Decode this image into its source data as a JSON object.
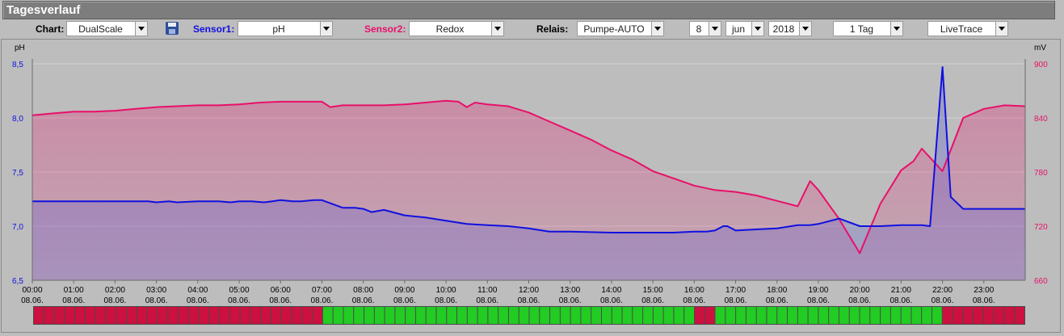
{
  "window": {
    "title": "Tagesverlauf"
  },
  "toolbar": {
    "chart_label": "Chart:",
    "chart_value": "DualScale",
    "sensor1_label": "Sensor1:",
    "sensor1_value": "pH",
    "sensor2_label": "Sensor2:",
    "sensor2_value": "Redox",
    "relais_label": "Relais:",
    "relais_value": "Pumpe-AUTO",
    "day_value": "8",
    "month_value": "jun",
    "year_value": "2018",
    "range_value": "1 Tag",
    "mode_value": "LiveTrace"
  },
  "colors": {
    "sensor1": "#1010e0",
    "sensor2": "#e8106a",
    "relay_on": "#22cc22",
    "relay_off": "#cc1040"
  },
  "chart_data": {
    "type": "line",
    "y1label": "pH",
    "y2label": "mV",
    "y1lim": [
      6.5,
      8.5
    ],
    "y2lim": [
      660,
      900
    ],
    "y1ticks": [
      "6,5",
      "7,0",
      "7,5",
      "8,0",
      "8,5"
    ],
    "y2ticks": [
      "660",
      "720",
      "780",
      "840",
      "900"
    ],
    "x_ticks": [
      "00:00",
      "01:00",
      "02:00",
      "03:00",
      "04:00",
      "05:00",
      "06:00",
      "07:00",
      "08:00",
      "09:00",
      "10:00",
      "11:00",
      "12:00",
      "13:00",
      "14:00",
      "15:00",
      "16:00",
      "17:00",
      "18:00",
      "19:00",
      "20:00",
      "21:00",
      "22:00",
      "23:00"
    ],
    "x_tick_date": "08.06.",
    "series": [
      {
        "name": "pH",
        "axis": "left",
        "x": [
          0,
          0.5,
          1,
          1.5,
          2,
          2.5,
          2.8,
          3,
          3.3,
          3.5,
          4,
          4.5,
          4.8,
          5,
          5.3,
          5.6,
          5.8,
          6,
          6.3,
          6.5,
          6.8,
          7,
          7.5,
          7.8,
          8,
          8.2,
          8.5,
          9,
          9.5,
          10,
          10.5,
          11,
          11.5,
          12,
          12.5,
          13,
          14,
          15,
          15.5,
          16,
          16.3,
          16.5,
          16.7,
          16.8,
          17,
          17.5,
          18,
          18.5,
          18.8,
          19,
          19.5,
          20,
          20.5,
          21,
          21.5,
          21.7,
          22,
          22.2,
          22.5,
          23,
          23.5,
          24
        ],
        "values": [
          7.23,
          7.23,
          7.23,
          7.23,
          7.23,
          7.23,
          7.23,
          7.22,
          7.23,
          7.22,
          7.23,
          7.23,
          7.22,
          7.23,
          7.23,
          7.22,
          7.23,
          7.24,
          7.23,
          7.23,
          7.24,
          7.24,
          7.17,
          7.17,
          7.16,
          7.13,
          7.15,
          7.1,
          7.08,
          7.05,
          7.02,
          7.01,
          7.0,
          6.98,
          6.95,
          6.95,
          6.94,
          6.94,
          6.94,
          6.95,
          6.95,
          6.96,
          7.0,
          7.0,
          6.96,
          6.97,
          6.98,
          7.01,
          7.01,
          7.02,
          7.07,
          7.0,
          7.0,
          7.01,
          7.01,
          7.0,
          8.47,
          7.27,
          7.16,
          7.16,
          7.16,
          7.16
        ]
      },
      {
        "name": "Redox",
        "axis": "right",
        "x": [
          0,
          0.5,
          1,
          1.5,
          2,
          2.5,
          3,
          3.5,
          4,
          4.5,
          5,
          5.5,
          6,
          6.5,
          7,
          7.2,
          7.5,
          8,
          8.5,
          9,
          9.5,
          10,
          10.3,
          10.5,
          10.7,
          11,
          11.5,
          12,
          12.5,
          13,
          13.5,
          14,
          14.5,
          15,
          15.5,
          16,
          16.5,
          17,
          17.5,
          18,
          18.5,
          18.8,
          19,
          19.5,
          20,
          20.5,
          21,
          21.3,
          21.5,
          22,
          22.5,
          23,
          23.5,
          24
        ],
        "values": [
          843,
          845,
          847,
          847,
          848,
          850,
          852,
          853,
          854,
          854,
          855,
          857,
          858,
          858,
          858,
          852,
          854,
          854,
          854,
          855,
          857,
          859,
          858,
          852,
          857,
          855,
          853,
          846,
          836,
          826,
          816,
          804,
          794,
          781,
          773,
          765,
          760,
          758,
          754,
          748,
          742,
          770,
          760,
          728,
          690,
          745,
          782,
          792,
          806,
          781,
          840,
          850,
          854,
          853
        ]
      }
    ],
    "relay_state_per_half_hour": [
      0,
      0,
      0,
      0,
      0,
      0,
      0,
      0,
      0,
      0,
      0,
      0,
      0,
      0,
      1,
      1,
      1,
      1,
      1,
      1,
      1,
      1,
      1,
      1,
      1,
      1,
      1,
      1,
      1,
      1,
      1,
      1,
      0,
      1,
      1,
      1,
      1,
      1,
      1,
      1,
      1,
      1,
      1,
      1,
      0,
      0,
      0,
      0
    ]
  }
}
